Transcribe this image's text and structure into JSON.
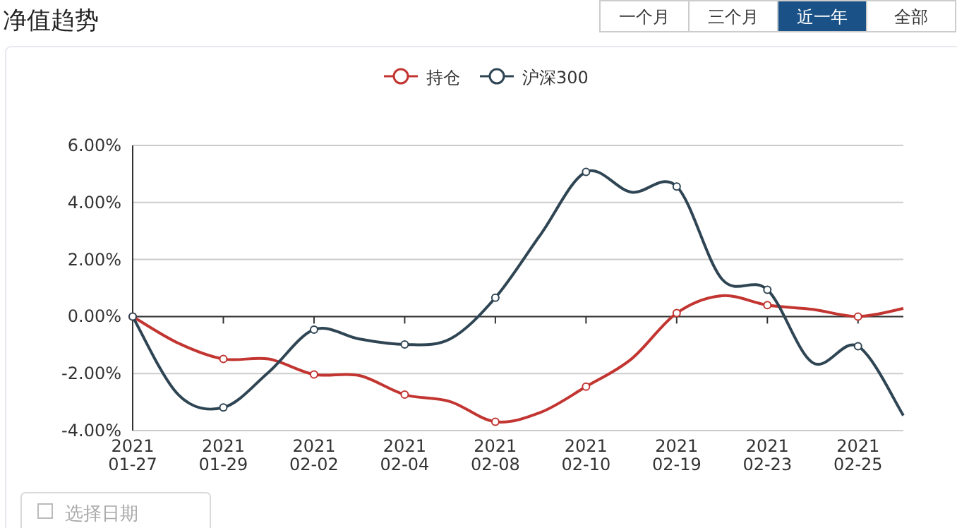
{
  "chart_data": {
    "type": "line",
    "title": "净值趋势",
    "categories": [
      "2021\n01-27",
      null,
      "2021\n01-29",
      null,
      "2021\n02-02",
      null,
      "2021\n02-04",
      null,
      "2021\n02-08",
      null,
      "2021\n02-10",
      null,
      "2021\n02-19",
      null,
      "2021\n02-23",
      null,
      "2021\n02-25",
      null
    ],
    "series": [
      {
        "name": "持仓",
        "color": "#c23531",
        "values": [
          0,
          -0.93,
          -1.49,
          -1.49,
          -2.03,
          -2.07,
          -2.74,
          -2.98,
          -3.69,
          -3.36,
          -2.46,
          -1.49,
          0.12,
          0.73,
          0.4,
          0.25,
          0.0,
          0.28
        ]
      },
      {
        "name": "沪深300",
        "color": "#2f4554",
        "values": [
          0,
          -2.73,
          -3.19,
          -1.95,
          -0.46,
          -0.79,
          -0.98,
          -0.79,
          0.66,
          2.88,
          5.07,
          4.36,
          4.56,
          1.31,
          0.94,
          -1.62,
          -1.04,
          -3.47
        ]
      }
    ],
    "ylim": [
      -4,
      6
    ],
    "yticks": [
      {
        "value": -4,
        "label": "-4.00%"
      },
      {
        "value": -2,
        "label": "-2.00%"
      },
      {
        "value": 0,
        "label": "0.00%"
      },
      {
        "value": 2,
        "label": "2.00%"
      },
      {
        "value": 4,
        "label": "4.00%"
      },
      {
        "value": 6,
        "label": "6.00%"
      }
    ],
    "grid": "y",
    "legend": "top",
    "marker": "circle",
    "annotations": [
      "一个月",
      "三个月",
      "近一年",
      "全部",
      "选择日期"
    ]
  }
}
